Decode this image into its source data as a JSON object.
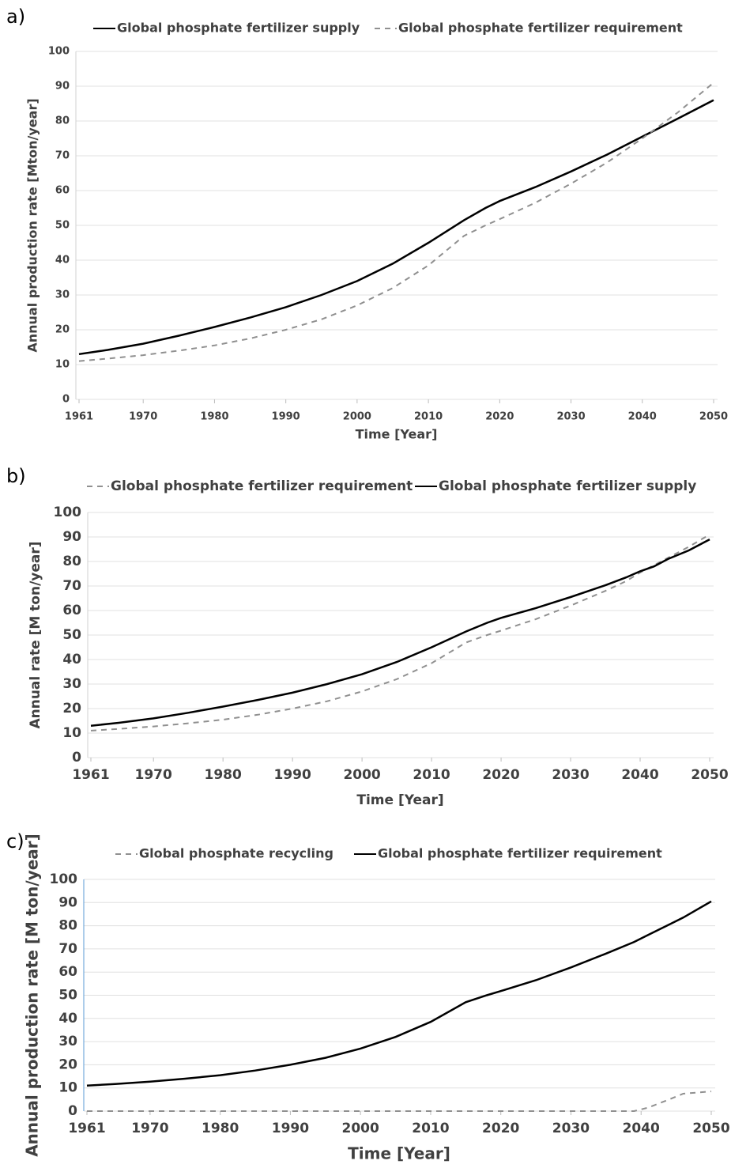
{
  "chart_data": [
    {
      "type": "line",
      "label": "a)",
      "x_label": "Time [Year]",
      "y_label": "Annual production rate [Mton/year]",
      "x": [
        1961,
        1965,
        1970,
        1975,
        1980,
        1985,
        1990,
        1995,
        2000,
        2005,
        2010,
        2015,
        2018,
        2020,
        2025,
        2030,
        2035,
        2040,
        2045,
        2050
      ],
      "series": [
        {
          "name": "Global phosphate fertilizer supply",
          "color": "#000000",
          "style": "solid",
          "values": [
            13,
            14.2,
            16,
            18.3,
            20.8,
            23.5,
            26.5,
            30,
            34,
            39,
            45,
            51.5,
            55,
            57,
            61,
            65.5,
            70.3,
            75.5,
            80.7,
            86
          ]
        },
        {
          "name": "Global phosphate fertilizer requirement",
          "color": "#909090",
          "style": "dashed",
          "values": [
            11,
            11.7,
            12.7,
            14,
            15.5,
            17.5,
            20,
            23,
            27,
            32,
            38.5,
            47,
            50,
            51.8,
            56.5,
            62,
            68,
            75,
            82.5,
            91
          ]
        }
      ],
      "xlim": [
        1961,
        2050
      ],
      "xticks": [
        1961,
        1970,
        1980,
        1990,
        2000,
        2010,
        2020,
        2030,
        2040,
        2050
      ],
      "ylim": [
        0,
        100
      ],
      "yticks": [
        0,
        10,
        20,
        30,
        40,
        50,
        60,
        70,
        80,
        90,
        100
      ],
      "grid": true
    },
    {
      "type": "line",
      "label": "b)",
      "x_label": "Time [Year]",
      "y_label": "Annual rate [M ton/year]",
      "x": [
        1961,
        1965,
        1970,
        1975,
        1980,
        1985,
        1990,
        1995,
        2000,
        2005,
        2010,
        2015,
        2018,
        2020,
        2025,
        2030,
        2035,
        2038,
        2040,
        2042,
        2044,
        2047,
        2050
      ],
      "series": [
        {
          "name": "Global phosphate fertilizer requirement",
          "color": "#909090",
          "style": "dashed",
          "values": [
            11,
            11.7,
            12.7,
            14,
            15.5,
            17.5,
            20,
            23,
            27,
            32,
            38.5,
            47,
            50,
            51.8,
            56.5,
            62,
            68,
            72,
            75.5,
            78.5,
            81.5,
            86,
            91
          ]
        },
        {
          "name": "Global phosphate fertilizer supply",
          "color": "#000000",
          "style": "solid",
          "values": [
            13,
            14.2,
            16,
            18.3,
            20.8,
            23.5,
            26.5,
            30,
            34,
            39,
            45,
            51.5,
            55,
            57,
            61,
            65.5,
            70.3,
            73.5,
            76,
            78,
            81,
            84.5,
            89
          ]
        }
      ],
      "xlim": [
        1961,
        2050
      ],
      "xticks": [
        1961,
        1970,
        1980,
        1990,
        2000,
        2010,
        2020,
        2030,
        2040,
        2050
      ],
      "ylim": [
        0,
        100
      ],
      "yticks": [
        0,
        10,
        20,
        30,
        40,
        50,
        60,
        70,
        80,
        90,
        100
      ],
      "grid": true
    },
    {
      "type": "line",
      "label": "c)",
      "x_label": "Time [Year]",
      "y_label": "Annual production rate [M ton/year]",
      "x": [
        1961,
        1965,
        1970,
        1975,
        1980,
        1985,
        1990,
        1995,
        2000,
        2005,
        2010,
        2015,
        2018,
        2020,
        2025,
        2030,
        2035,
        2039,
        2041,
        2044,
        2046,
        2050
      ],
      "series": [
        {
          "name": "Global phosphate recycling",
          "color": "#909090",
          "style": "dashed",
          "values": [
            0,
            0,
            0,
            0,
            0,
            0,
            0,
            0,
            0,
            0,
            0,
            0,
            0,
            0,
            0,
            0,
            0,
            0,
            1.5,
            5,
            7.5,
            8.5
          ]
        },
        {
          "name": "Global phosphate fertilizer requirement",
          "color": "#000000",
          "style": "solid",
          "values": [
            11,
            11.7,
            12.7,
            14,
            15.5,
            17.5,
            20,
            23,
            27,
            32,
            38.5,
            47,
            50,
            51.8,
            56.5,
            62,
            68,
            73,
            76,
            80.5,
            83.5,
            90.5
          ]
        }
      ],
      "xlim": [
        1961,
        2050
      ],
      "xticks": [
        1961,
        1970,
        1980,
        1990,
        2000,
        2010,
        2020,
        2030,
        2040,
        2050
      ],
      "ylim": [
        0,
        100
      ],
      "yticks": [
        0,
        10,
        20,
        30,
        40,
        50,
        60,
        70,
        80,
        90,
        100
      ],
      "grid": true
    }
  ]
}
